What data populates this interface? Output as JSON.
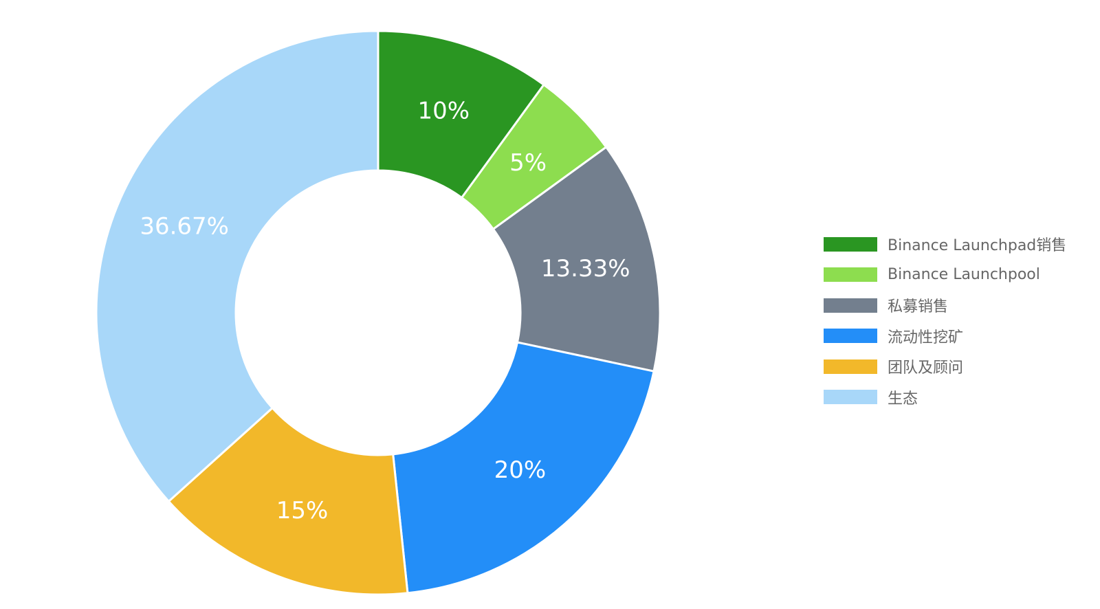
{
  "chart_data": {
    "type": "pie",
    "donut": true,
    "title": "",
    "legend_position": "right",
    "series": [
      {
        "name": "Binance Launchpad销售",
        "value": 10,
        "label": "10%",
        "color": "#2a9622"
      },
      {
        "name": "Binance Launchpool",
        "value": 5,
        "label": "5%",
        "color": "#8ddd4f"
      },
      {
        "name": "私募销售",
        "value": 13.33,
        "label": "13.33%",
        "color": "#737f8e"
      },
      {
        "name": "流动性挖矿",
        "value": 20,
        "label": "20%",
        "color": "#238ef8"
      },
      {
        "name": "团队及顾问",
        "value": 15,
        "label": "15%",
        "color": "#f2b82a"
      },
      {
        "name": "生态",
        "value": 36.67,
        "label": "36.67%",
        "color": "#a8d7f9"
      }
    ]
  }
}
